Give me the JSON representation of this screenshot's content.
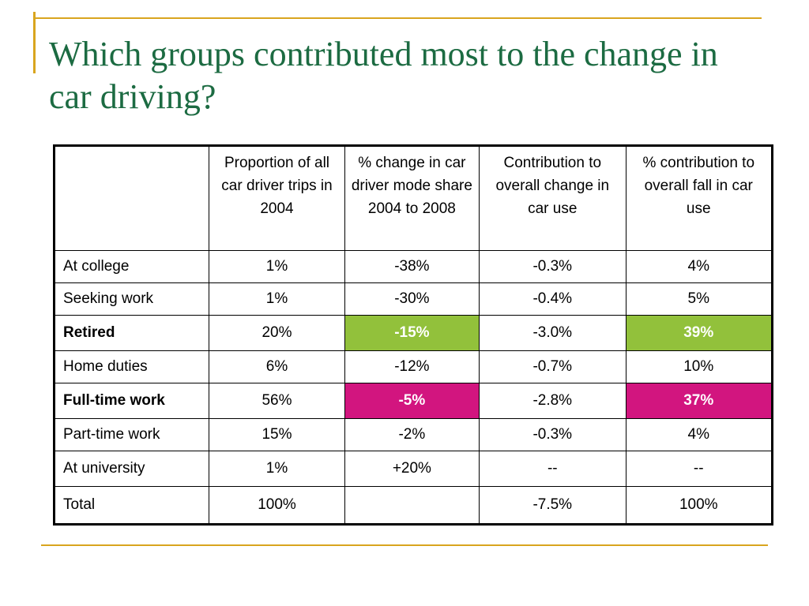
{
  "slide": {
    "title": "Which groups contributed most to the change in car driving?",
    "accent_color": "#d9a51e",
    "title_color": "#1c6b42"
  },
  "table": {
    "headers": [
      "",
      "Proportion of all car driver trips in 2004",
      "% change in car driver mode share 2004 to 2008",
      "Contribution to overall change in car use",
      "% contribution to overall fall in car use"
    ],
    "rows": [
      [
        "At college",
        "1%",
        "-38%",
        "-0.3%",
        "4%"
      ],
      [
        "Seeking work",
        "1%",
        "-30%",
        "-0.4%",
        "5%"
      ],
      [
        "Retired",
        "20%",
        "-15%",
        "-3.0%",
        "39%"
      ],
      [
        "Home duties",
        "6%",
        "-12%",
        "-0.7%",
        "10%"
      ],
      [
        "Full-time work",
        "56%",
        "-5%",
        "-2.8%",
        "37%"
      ],
      [
        "Part-time work",
        "15%",
        "-2%",
        "-0.3%",
        "4%"
      ],
      [
        "At university",
        "1%",
        "+20%",
        "--",
        "--"
      ],
      [
        "Total",
        "100%",
        "",
        "-7.5%",
        "100%"
      ]
    ],
    "highlight_colors": {
      "green": "#92c13b",
      "magenta": "#d2157f"
    }
  }
}
